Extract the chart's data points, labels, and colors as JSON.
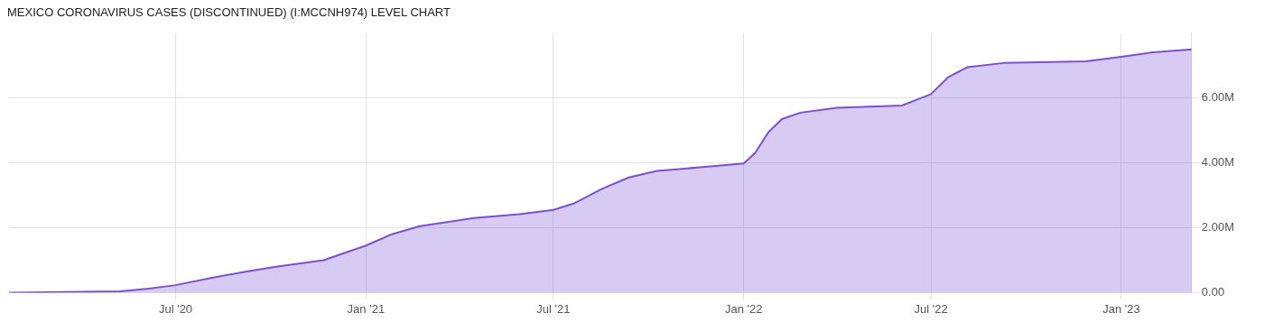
{
  "chart_data": {
    "type": "area",
    "title": "MEXICO CORONAVIRUS CASES (DISCONTINUED) (I:MCCNH974) LEVEL CHART",
    "x": [
      "2020-01-22",
      "2020-05-08",
      "2020-06-05",
      "2020-07-01",
      "2020-08-04",
      "2020-09-09",
      "2020-10-06",
      "2020-11-21",
      "2021-01-01",
      "2021-01-26",
      "2021-02-22",
      "2021-04-15",
      "2021-05-29",
      "2021-07-01",
      "2021-07-21",
      "2021-08-17",
      "2021-09-12",
      "2021-10-09",
      "2021-11-22",
      "2022-01-01",
      "2022-01-12",
      "2022-01-25",
      "2022-02-07",
      "2022-02-25",
      "2022-04-01",
      "2022-06-03",
      "2022-07-01",
      "2022-07-18",
      "2022-08-05",
      "2022-09-09",
      "2022-11-28",
      "2023-01-01",
      "2023-01-29",
      "2023-03-10"
    ],
    "series": [
      {
        "color": "#7b4fd6",
        "values": [
          0,
          40000,
          120000,
          230000,
          450000,
          660000,
          800000,
          1000000,
          1450000,
          1800000,
          2050000,
          2300000,
          2420000,
          2550000,
          2750000,
          3200000,
          3550000,
          3750000,
          3870000,
          3980000,
          4300000,
          4950000,
          5350000,
          5550000,
          5700000,
          5770000,
          6120000,
          6650000,
          6950000,
          7080000,
          7130000,
          7270000,
          7400000,
          7500000
        ]
      }
    ],
    "xlim": [
      "2020-01-22",
      "2023-03-10"
    ],
    "xticks": [
      {
        "value": "2020-07-01",
        "label": "Jul '20"
      },
      {
        "value": "2021-01-01",
        "label": "Jan '21"
      },
      {
        "value": "2021-07-01",
        "label": "Jul '21"
      },
      {
        "value": "2022-01-01",
        "label": "Jan '22"
      },
      {
        "value": "2022-07-01",
        "label": "Jul '22"
      },
      {
        "value": "2023-01-01",
        "label": "Jan '23"
      }
    ],
    "ylim": [
      0,
      8000000
    ],
    "yticks": [
      {
        "value": 0,
        "label": "0.00"
      },
      {
        "value": 2000000,
        "label": "2.00M"
      },
      {
        "value": 4000000,
        "label": "4.00M"
      },
      {
        "value": 6000000,
        "label": "6.00M"
      }
    ],
    "grid": true
  }
}
